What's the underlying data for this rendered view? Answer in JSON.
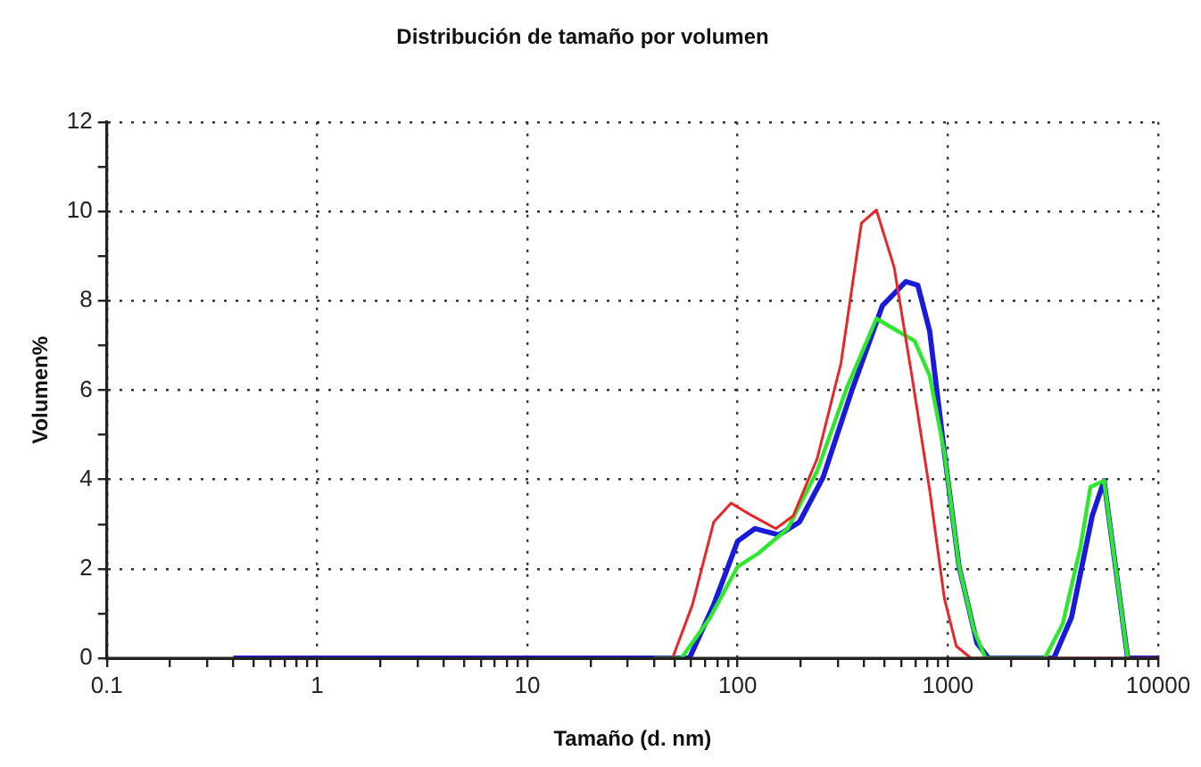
{
  "chart_data": {
    "type": "line",
    "title": "Distribución de tamaño por volumen",
    "xlabel": "Tamaño (d. nm)",
    "ylabel": "Volumen%",
    "log": "x",
    "grid": true,
    "line_style": "solid",
    "marker": "none",
    "xlim": [
      0.1,
      10000
    ],
    "ylim": [
      0,
      12
    ],
    "xticks": [
      0.1,
      {
        "value": 0.2,
        "label": null
      },
      {
        "value": 0.3,
        "label": null
      },
      {
        "value": 0.4,
        "label": null
      },
      {
        "value": 0.5,
        "label": null
      },
      {
        "value": 0.6,
        "label": null
      },
      {
        "value": 0.7,
        "label": null
      },
      {
        "value": 0.8,
        "label": null
      },
      {
        "value": 0.9,
        "label": null
      },
      1,
      {
        "value": 2,
        "label": null
      },
      {
        "value": 3,
        "label": null
      },
      {
        "value": 4,
        "label": null
      },
      {
        "value": 5,
        "label": null
      },
      {
        "value": 6,
        "label": null
      },
      {
        "value": 7,
        "label": null
      },
      {
        "value": 8,
        "label": null
      },
      {
        "value": 9,
        "label": null
      },
      10,
      {
        "value": 20,
        "label": null
      },
      {
        "value": 30,
        "label": null
      },
      {
        "value": 40,
        "label": null
      },
      {
        "value": 50,
        "label": null
      },
      {
        "value": 60,
        "label": null
      },
      {
        "value": 70,
        "label": null
      },
      {
        "value": 80,
        "label": null
      },
      {
        "value": 90,
        "label": null
      },
      100,
      {
        "value": 200,
        "label": null
      },
      {
        "value": 300,
        "label": null
      },
      {
        "value": 400,
        "label": null
      },
      {
        "value": 500,
        "label": null
      },
      {
        "value": 600,
        "label": null
      },
      {
        "value": 700,
        "label": null
      },
      {
        "value": 800,
        "label": null
      },
      {
        "value": 900,
        "label": null
      },
      1000,
      {
        "value": 2000,
        "label": null
      },
      {
        "value": 3000,
        "label": null
      },
      {
        "value": 4000,
        "label": null
      },
      {
        "value": 5000,
        "label": null
      },
      {
        "value": 6000,
        "label": null
      },
      {
        "value": 7000,
        "label": null
      },
      {
        "value": 8000,
        "label": null
      },
      {
        "value": 9000,
        "label": null
      },
      10000
    ],
    "yticks": [
      0,
      {
        "value": 1,
        "label": null
      },
      2,
      {
        "value": 3,
        "label": null
      },
      4,
      {
        "value": 5,
        "label": null
      },
      6,
      {
        "value": 7,
        "label": null
      },
      8,
      {
        "value": 9,
        "label": null
      },
      10,
      {
        "value": 11,
        "label": null
      },
      12
    ],
    "series": [
      {
        "color": "#e8262a",
        "x": [
          40,
          49,
          61,
          77,
          93,
          117,
          152,
          184,
          239,
          310,
          388,
          457,
          555,
          674,
          819,
          962,
          1096,
          1288,
          10000
        ],
        "values": [
          0,
          0,
          1.2,
          3.05,
          3.47,
          3.19,
          2.9,
          3.19,
          4.47,
          6.6,
          9.74,
          10.03,
          8.75,
          6.32,
          3.76,
          1.34,
          0.27,
          0,
          0
        ]
      },
      {
        "color": "#2ee82e",
        "x": [
          40,
          54,
          74,
          100,
          125,
          173,
          239,
          330,
          457,
          695,
          819,
          962,
          1130,
          1330,
          1510,
          2890,
          3515,
          4270,
          4760,
          5530,
          7160
        ],
        "values": [
          0,
          0,
          0.91,
          2.05,
          2.34,
          2.9,
          4.19,
          6.04,
          7.6,
          7.1,
          6.32,
          4.6,
          2.05,
          0.63,
          0,
          0,
          0.77,
          2.48,
          3.83,
          3.97,
          0
        ]
      },
      {
        "color": "#1a1adb",
        "x": [
          0.4,
          59,
          77,
          100,
          121,
          157,
          197,
          255,
          352,
          488,
          631,
          719,
          819,
          962,
          1130,
          1375,
          1563,
          3190,
          3870,
          4860,
          5530,
          7160,
          10000
        ],
        "values": [
          0,
          0,
          1.2,
          2.62,
          2.9,
          2.76,
          3.05,
          4.05,
          6.04,
          7.89,
          8.43,
          8.35,
          7.32,
          4.6,
          2.05,
          0.34,
          0,
          0,
          0.91,
          3.19,
          3.97,
          0,
          0
        ]
      }
    ]
  }
}
